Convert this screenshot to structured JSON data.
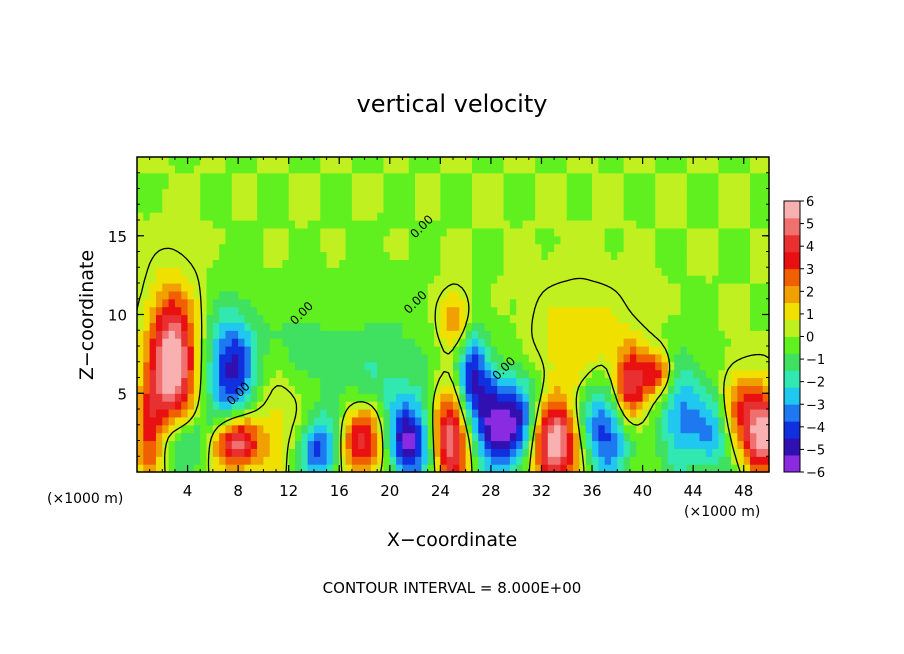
{
  "chart_data": {
    "type": "heatmap",
    "title": "vertical velocity",
    "xlabel": "X−coordinate",
    "ylabel": "Z−coordinate",
    "x_unit_left": "(×1000 m)",
    "x_unit_right": "(×1000 m)",
    "footer": "CONTOUR INTERVAL = 8.000E+00",
    "contour_label": "0.00",
    "xlim": [
      0,
      50
    ],
    "ylim": [
      0,
      20
    ],
    "x_ticks": [
      {
        "v": 4,
        "label": "4"
      },
      {
        "v": 8,
        "label": "8"
      },
      {
        "v": 12,
        "label": "12"
      },
      {
        "v": 16,
        "label": "16"
      },
      {
        "v": 20,
        "label": "20"
      },
      {
        "v": 24,
        "label": "24"
      },
      {
        "v": 28,
        "label": "28"
      },
      {
        "v": 32,
        "label": "32"
      },
      {
        "v": 36,
        "label": "36"
      },
      {
        "v": 40,
        "label": "40"
      },
      {
        "v": 44,
        "label": "44"
      },
      {
        "v": 48,
        "label": "48"
      }
    ],
    "y_ticks": [
      {
        "v": 5,
        "label": "5"
      },
      {
        "v": 10,
        "label": "10"
      },
      {
        "v": 15,
        "label": "15"
      }
    ],
    "colorbar": {
      "min": -6,
      "max": 6,
      "tick_labels": [
        "6",
        "5",
        "4",
        "3",
        "2",
        "1",
        "0",
        "−1",
        "−2",
        "−3",
        "−4",
        "−5",
        "−6"
      ],
      "colors": [
        "#8a2be2",
        "#3010b0",
        "#1030e0",
        "#1e78f0",
        "#20c8f0",
        "#30e8b0",
        "#40e060",
        "#60f020",
        "#c0f020",
        "#f0e000",
        "#f0a000",
        "#f06000",
        "#e81010",
        "#e83030",
        "#f07070",
        "#f8b0b0"
      ]
    },
    "features": [
      {
        "x": 2.8,
        "z": 7.0,
        "w": 6.5,
        "rx": 1.3,
        "rz": 3.0
      },
      {
        "x": 1.0,
        "z": 2.5,
        "w": 3.5,
        "rx": 0.8,
        "rz": 2.0
      },
      {
        "x": 7.5,
        "z": 6.5,
        "w": -4.8,
        "rx": 1.4,
        "rz": 2.6
      },
      {
        "x": 7.8,
        "z": 1.9,
        "w": 5.3,
        "rx": 1.3,
        "rz": 1.2
      },
      {
        "x": 3.5,
        "z": 2.0,
        "w": -2.5,
        "rx": 1.6,
        "rz": 1.4
      },
      {
        "x": 11.0,
        "z": 3.5,
        "w": 1.2,
        "rx": 2.0,
        "rz": 2.5
      },
      {
        "x": 14.5,
        "z": 1.5,
        "w": -4.2,
        "rx": 1.2,
        "rz": 1.6
      },
      {
        "x": 17.8,
        "z": 2.0,
        "w": 4.8,
        "rx": 1.4,
        "rz": 1.6
      },
      {
        "x": 21.5,
        "z": 1.9,
        "w": -5.2,
        "rx": 1.3,
        "rz": 1.8
      },
      {
        "x": 24.8,
        "z": 2.2,
        "w": 5.5,
        "rx": 1.0,
        "rz": 2.2
      },
      {
        "x": 26.5,
        "z": 6.0,
        "w": -4.5,
        "rx": 0.9,
        "rz": 2.2
      },
      {
        "x": 25.2,
        "z": 9.5,
        "w": 2.5,
        "rx": 0.9,
        "rz": 1.3
      },
      {
        "x": 28.0,
        "z": 3.0,
        "w": -3.5,
        "rx": 0.9,
        "rz": 2.0
      },
      {
        "x": 30.0,
        "z": 3.0,
        "w": -5.3,
        "rx": 1.4,
        "rz": 2.2
      },
      {
        "x": 33.0,
        "z": 1.8,
        "w": 6.5,
        "rx": 1.5,
        "rz": 1.9
      },
      {
        "x": 37.0,
        "z": 2.8,
        "w": -4.6,
        "rx": 1.6,
        "rz": 2.2
      },
      {
        "x": 39.0,
        "z": 5.3,
        "w": 5.0,
        "rx": 1.0,
        "rz": 1.8
      },
      {
        "x": 41.2,
        "z": 6.3,
        "w": 3.5,
        "rx": 0.8,
        "rz": 1.0
      },
      {
        "x": 43.0,
        "z": 3.6,
        "w": -3.2,
        "rx": 1.2,
        "rz": 2.5
      },
      {
        "x": 45.5,
        "z": 2.5,
        "w": -2.6,
        "rx": 1.0,
        "rz": 2.0
      },
      {
        "x": 49.5,
        "z": 2.6,
        "w": 6.0,
        "rx": 1.2,
        "rz": 1.8
      },
      {
        "x": 47.5,
        "z": 4.5,
        "w": 2.0,
        "rx": 1.0,
        "rz": 1.5
      },
      {
        "x": 19.0,
        "z": 6.0,
        "w": -1.5,
        "rx": 3.0,
        "rz": 3.0
      },
      {
        "x": 35.0,
        "z": 8.0,
        "w": 1.5,
        "rx": 2.5,
        "rz": 2.5
      },
      {
        "x": 12.5,
        "z": 8.0,
        "w": -1.0,
        "rx": 2.0,
        "rz": 2.0
      }
    ]
  }
}
